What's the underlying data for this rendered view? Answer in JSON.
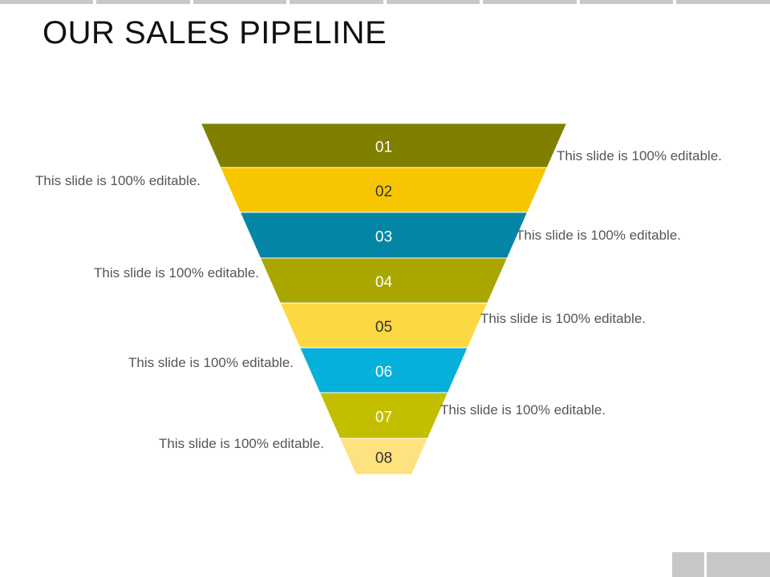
{
  "title": "OUR SALES PIPELINE",
  "funnel": {
    "stages": [
      {
        "number": "01",
        "color": "#7f7f00",
        "text_color": "#ffffff"
      },
      {
        "number": "02",
        "color": "#f7c600",
        "text_color": "#333333"
      },
      {
        "number": "03",
        "color": "#0485a6",
        "text_color": "#ffffff"
      },
      {
        "number": "04",
        "color": "#a9a600",
        "text_color": "#ffffff"
      },
      {
        "number": "05",
        "color": "#fcd843",
        "text_color": "#333333"
      },
      {
        "number": "06",
        "color": "#05b0da",
        "text_color": "#ffffff"
      },
      {
        "number": "07",
        "color": "#c3bf00",
        "text_color": "#ffffff"
      },
      {
        "number": "08",
        "color": "#fde27f",
        "text_color": "#333333"
      }
    ]
  },
  "captions": [
    "This slide is 100% editable.",
    "This slide is 100% editable.",
    "This slide is 100% editable.",
    "This slide is 100% editable.",
    "This slide is 100% editable.",
    "This slide is 100% editable.",
    "This slide is 100% editable.",
    "This slide is 100% editable."
  ]
}
